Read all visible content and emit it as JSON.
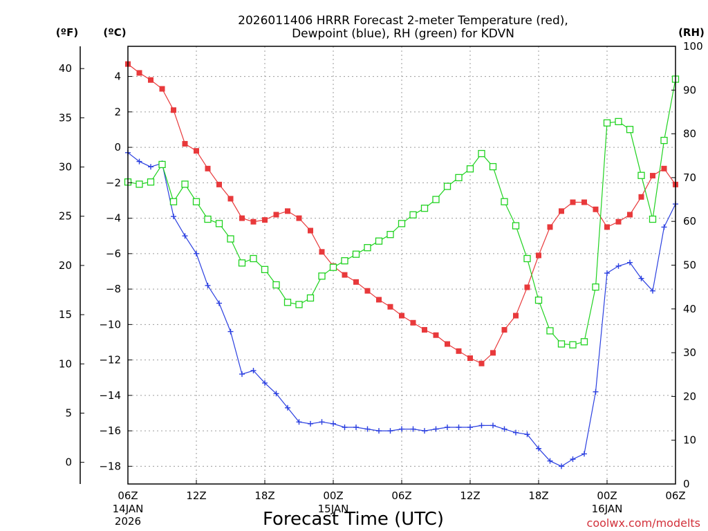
{
  "chart_data": {
    "type": "line",
    "title_line1": "2026011406 HRRR Forecast 2-meter Temperature (red),",
    "title_line2": "Dewpoint (blue), RH (green) for KDVN",
    "xlabel": "Forecast Time (UTC)",
    "credit": "coolwx.com/modelts",
    "unit_labels": {
      "fahrenheit": "(ºF)",
      "celsius": "(ºC)",
      "rh": "(RH)"
    },
    "colors": {
      "temperature": "#e8393b",
      "dewpoint": "#2a3fe0",
      "rh": "#1fd21f",
      "grid": "#9a9a9a",
      "credit": "#d2303a"
    },
    "x_range_hours": [
      0,
      48
    ],
    "x_ticks": [
      {
        "h": 0,
        "label": "06Z",
        "sub": [
          "14JAN",
          "2026"
        ]
      },
      {
        "h": 6,
        "label": "12Z",
        "sub": []
      },
      {
        "h": 12,
        "label": "18Z",
        "sub": []
      },
      {
        "h": 18,
        "label": "00Z",
        "sub": [
          "15JAN"
        ]
      },
      {
        "h": 24,
        "label": "06Z",
        "sub": []
      },
      {
        "h": 30,
        "label": "12Z",
        "sub": []
      },
      {
        "h": 36,
        "label": "18Z",
        "sub": []
      },
      {
        "h": 42,
        "label": "00Z",
        "sub": [
          "16JAN"
        ]
      },
      {
        "h": 48,
        "label": "06Z",
        "sub": []
      }
    ],
    "y_celsius": {
      "range": [
        -19,
        5.7
      ],
      "ticks": [
        -18,
        -16,
        -14,
        -12,
        -10,
        -8,
        -6,
        -4,
        -2,
        0,
        2,
        4
      ]
    },
    "y_fahrenheit": {
      "ticks": [
        0,
        5,
        10,
        15,
        20,
        25,
        30,
        35,
        40
      ]
    },
    "y_rh": {
      "range": [
        0,
        100
      ],
      "ticks": [
        0,
        10,
        20,
        30,
        40,
        50,
        60,
        70,
        80,
        90,
        100
      ]
    },
    "x_hours": [
      0,
      1,
      2,
      3,
      4,
      5,
      6,
      7,
      8,
      9,
      10,
      11,
      12,
      13,
      14,
      15,
      16,
      17,
      18,
      19,
      20,
      21,
      22,
      23,
      24,
      25,
      26,
      27,
      28,
      29,
      30,
      31,
      32,
      33,
      34,
      35,
      36,
      37,
      38,
      39,
      40,
      41,
      42,
      43,
      44,
      45,
      46,
      47,
      48
    ],
    "series": [
      {
        "name": "Temperature",
        "unit": "C",
        "marker": "filled-square",
        "values": [
          4.7,
          4.2,
          3.8,
          3.3,
          2.1,
          0.2,
          -0.2,
          -1.2,
          -2.1,
          -2.9,
          -4.0,
          -4.2,
          -4.1,
          -3.8,
          -3.6,
          -4.0,
          -4.7,
          -5.9,
          -6.7,
          -7.2,
          -7.6,
          -8.1,
          -8.6,
          -9.0,
          -9.5,
          -9.9,
          -10.3,
          -10.6,
          -11.1,
          -11.5,
          -11.9,
          -12.2,
          -11.6,
          -10.3,
          -9.5,
          -7.9,
          -6.1,
          -4.5,
          -3.6,
          -3.1,
          -3.1,
          -3.5,
          -4.5,
          -4.2,
          -3.8,
          -2.8,
          -1.6,
          -1.2,
          -2.1
        ]
      },
      {
        "name": "Dewpoint",
        "unit": "C",
        "marker": "plus",
        "values": [
          -0.3,
          -0.8,
          -1.1,
          -0.9,
          -3.9,
          -5.0,
          -6.0,
          -7.8,
          -8.8,
          -10.4,
          -12.8,
          -12.6,
          -13.3,
          -13.9,
          -14.7,
          -15.5,
          -15.6,
          -15.5,
          -15.6,
          -15.8,
          -15.8,
          -15.9,
          -16.0,
          -16.0,
          -15.9,
          -15.9,
          -16.0,
          -15.9,
          -15.8,
          -15.8,
          -15.8,
          -15.7,
          -15.7,
          -15.9,
          -16.1,
          -16.2,
          -17.0,
          -17.7,
          -18.0,
          -17.6,
          -17.3,
          -13.8,
          -7.1,
          -6.7,
          -6.5,
          -7.4,
          -8.1,
          -4.5,
          -3.2
        ]
      },
      {
        "name": "Relative Humidity",
        "unit": "%",
        "marker": "open-square",
        "values": [
          69,
          68.5,
          69,
          73,
          64.5,
          68.5,
          64.5,
          60.5,
          59.5,
          56,
          50.5,
          51.5,
          49,
          45.5,
          41.5,
          41,
          42.5,
          47.5,
          49.5,
          51,
          52.5,
          54,
          55.5,
          57,
          59.5,
          61.5,
          63,
          65,
          68,
          70,
          72,
          75.5,
          72.5,
          64.5,
          59,
          51.5,
          42,
          35,
          32,
          31.8,
          32.5,
          45,
          82.5,
          82.8,
          81,
          70.5,
          60.5,
          78.5,
          92.5
        ]
      }
    ]
  }
}
